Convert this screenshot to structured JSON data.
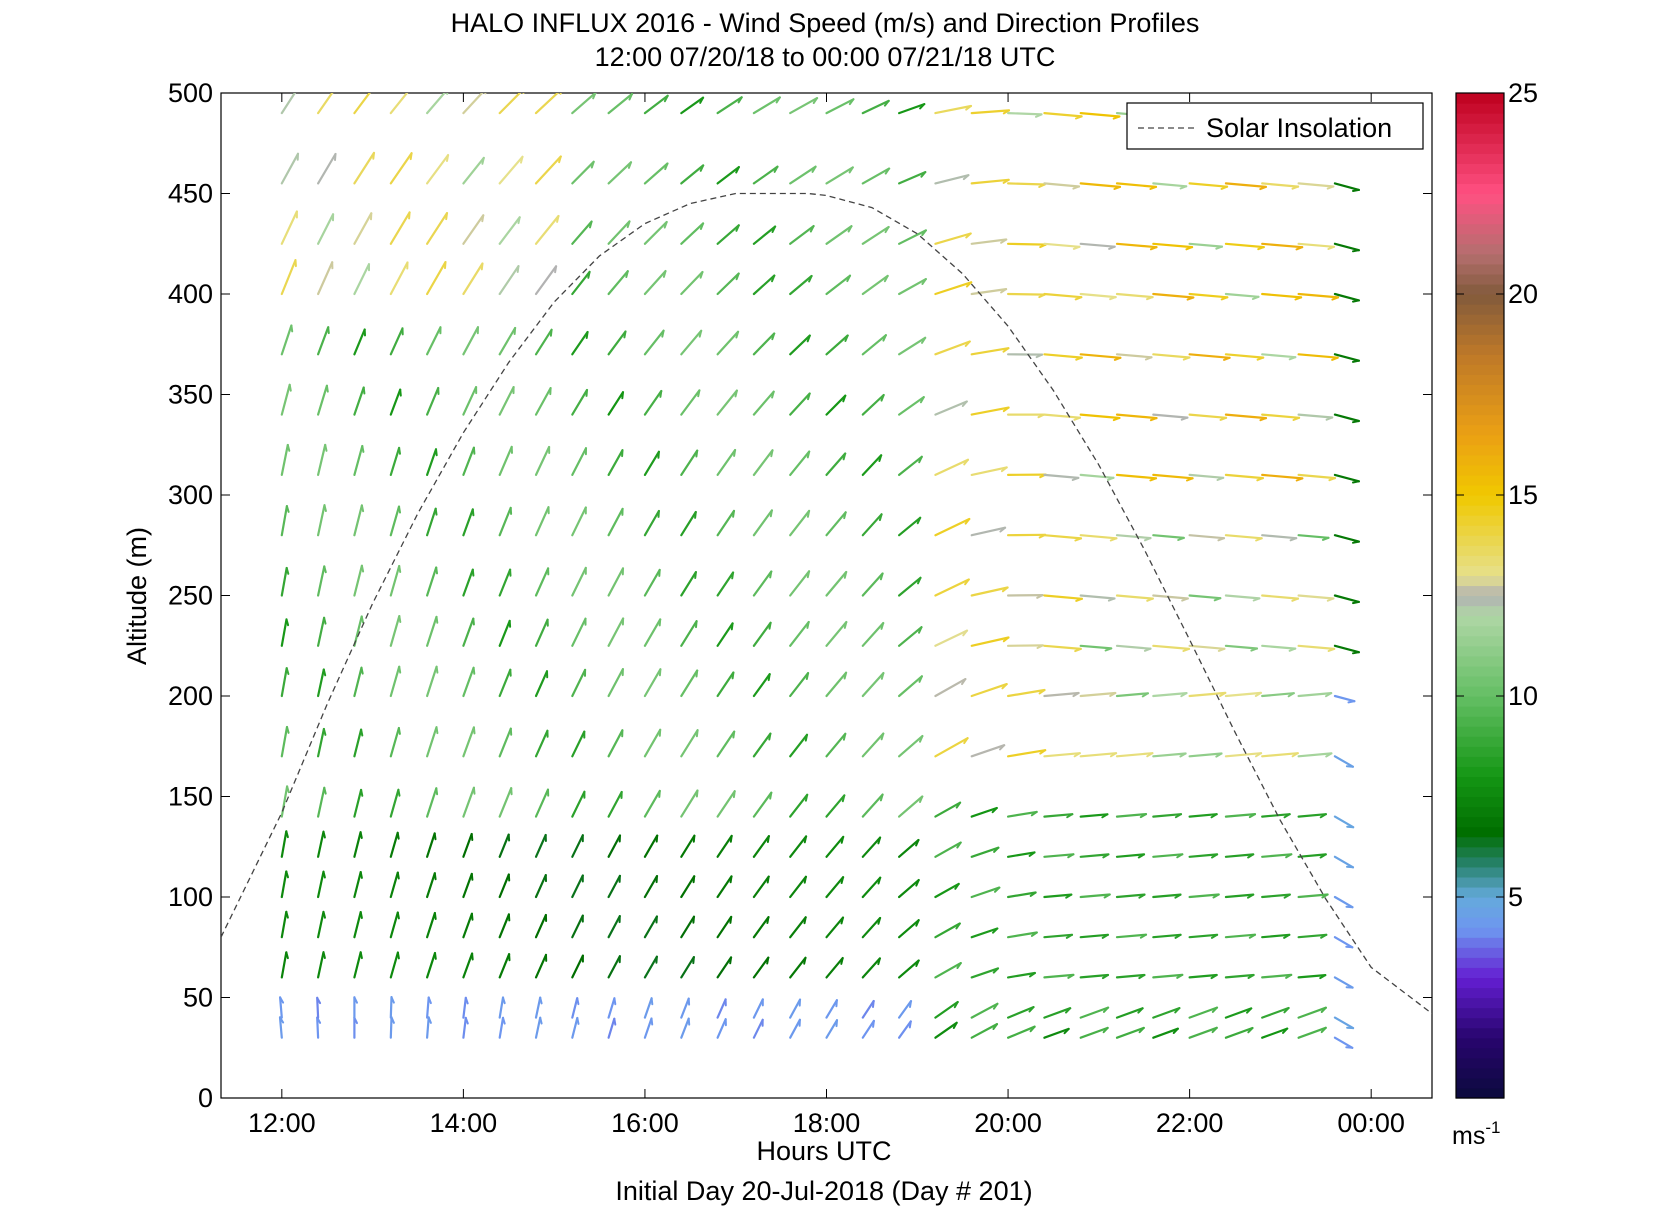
{
  "chart_data": {
    "type": "wind-barb-profile",
    "title": "HALO INFLUX 2016 - Wind Speed (m/s) and Direction Profiles",
    "subtitle": "12:00 07/20/18 to 00:00 07/21/18  UTC",
    "xlabel": "Hours UTC",
    "xlabel2": "Initial Day 20-Jul-2018 (Day # 201)",
    "ylabel": "Altitude (m)",
    "xlim": [
      11.33,
      24.67
    ],
    "ylim": [
      0,
      500
    ],
    "x_ticks": [
      12,
      14,
      16,
      18,
      20,
      22,
      24
    ],
    "x_tick_labels": [
      "12:00",
      "14:00",
      "16:00",
      "18:00",
      "20:00",
      "22:00",
      "00:00"
    ],
    "y_ticks": [
      0,
      50,
      100,
      150,
      200,
      250,
      300,
      350,
      400,
      450,
      500
    ],
    "y_tick_labels": [
      "0",
      "50",
      "100",
      "150",
      "200",
      "250",
      "300",
      "350",
      "400",
      "450",
      "500"
    ],
    "legend": {
      "entries": [
        "Solar Insolation"
      ],
      "placement": "top-right"
    },
    "colorbar": {
      "range": [
        0,
        25
      ],
      "ticks": [
        5,
        10,
        15,
        20,
        25
      ],
      "tick_labels": [
        "5",
        "10",
        "15",
        "20",
        "25"
      ],
      "unit_label": "ms",
      "unit_exponent": "-1"
    },
    "grid": false,
    "solar_insolation_curve": {
      "name": "Solar Insolation",
      "peak_time": 17.8,
      "peak_altitude": 450,
      "x": [
        11.33,
        12,
        12.5,
        13,
        13.5,
        14,
        14.5,
        15,
        15.5,
        16,
        16.5,
        17,
        17.5,
        17.8,
        18,
        18.5,
        19,
        19.5,
        20,
        20.5,
        21,
        21.5,
        22,
        22.5,
        23,
        23.5,
        24,
        24.67
      ],
      "y": [
        80,
        142,
        196,
        246,
        291,
        331,
        366,
        396,
        419,
        435,
        445,
        450,
        450,
        450,
        449,
        443,
        430,
        410,
        384,
        352,
        315,
        273,
        228,
        182,
        138,
        99,
        65,
        42
      ]
    },
    "wind_profiles": {
      "times": [
        12,
        12.4,
        12.8,
        13.2,
        13.6,
        14,
        14.4,
        14.8,
        15.2,
        15.6,
        16,
        16.4,
        16.8,
        17.2,
        17.6,
        18,
        18.4,
        18.8,
        19.2,
        19.6,
        20,
        20.4,
        20.8,
        21.2,
        21.6,
        22,
        22.4,
        22.8,
        23.2,
        23.6
      ],
      "altitudes": [
        30,
        40,
        60,
        80,
        100,
        120,
        140,
        170,
        200,
        225,
        250,
        280,
        310,
        340,
        370,
        400,
        425,
        455,
        490
      ],
      "note": "speed (m/s) and direction in degrees (meteorological, direction from which wind blows) are estimated per time/altitude"
    }
  }
}
